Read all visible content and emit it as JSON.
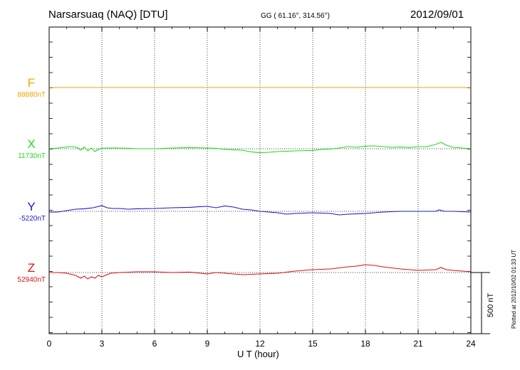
{
  "header": {
    "station": "Narsarsuaq (NAQ)  [DTU]",
    "coords": "GG ( 61.16°, 314.56°)",
    "date": "2012/09/01"
  },
  "footer": {
    "plotted": "Plotted at 2012/10/02 01:33 UT"
  },
  "chart_data": {
    "type": "line",
    "xlabel": "U T (hour)",
    "xlim": [
      0,
      24
    ],
    "xticks": [
      0,
      3,
      6,
      9,
      12,
      15,
      18,
      21,
      24
    ],
    "grid": "dotted vertical at every 3 hours",
    "scale_bar": {
      "label": "500 nT",
      "value_nT": 500
    },
    "series": [
      {
        "name": "F",
        "baseline_label": "88880nT",
        "baseline_nT": 88880,
        "color": "#f0a500",
        "x": [
          0,
          24
        ],
        "y": [
          0,
          0
        ]
      },
      {
        "name": "X",
        "baseline_label": "11730nT",
        "baseline_nT": 11730,
        "color": "#22dd22",
        "x": [
          0,
          0.5,
          1,
          1.3,
          1.6,
          1.8,
          2.0,
          2.2,
          2.4,
          2.6,
          2.8,
          3.0,
          3.3,
          3.8,
          4.5,
          5,
          6,
          7,
          8,
          9,
          9.5,
          10,
          10.5,
          11,
          11.5,
          12,
          12.5,
          13,
          13.5,
          14,
          15,
          15.5,
          16,
          16.5,
          17,
          17.5,
          18,
          18.5,
          19,
          19.5,
          20,
          20.5,
          21,
          21.5,
          22,
          22.3,
          22.6,
          23,
          23.5,
          24
        ],
        "y": [
          0,
          5,
          12,
          15,
          8,
          -10,
          12,
          -15,
          5,
          -20,
          -5,
          3,
          5,
          5,
          3,
          0,
          0,
          5,
          8,
          5,
          3,
          -5,
          -8,
          -10,
          -22,
          -28,
          -25,
          -20,
          -18,
          -15,
          -12,
          -5,
          -3,
          5,
          15,
          10,
          18,
          20,
          15,
          10,
          12,
          8,
          15,
          15,
          30,
          45,
          25,
          10,
          5,
          0
        ]
      },
      {
        "name": "Y",
        "baseline_label": "-5220nT",
        "baseline_nT": -5220,
        "color": "#1a1acc",
        "x": [
          0,
          0.5,
          1,
          1.5,
          2,
          2.5,
          3,
          3.3,
          3.6,
          4,
          4.5,
          5,
          6,
          7,
          8,
          8.5,
          9,
          9.5,
          10,
          10.5,
          11,
          11.5,
          12,
          12.5,
          13,
          13.5,
          14,
          15,
          16,
          16.5,
          17,
          18,
          18.5,
          19,
          20,
          21,
          22,
          22.2,
          22.5,
          23,
          24
        ],
        "y": [
          -5,
          -5,
          5,
          15,
          18,
          25,
          40,
          25,
          20,
          20,
          15,
          18,
          20,
          25,
          28,
          32,
          35,
          25,
          38,
          30,
          15,
          10,
          0,
          -5,
          -10,
          -20,
          -15,
          -10,
          -15,
          -25,
          -20,
          -15,
          -10,
          -5,
          0,
          0,
          0,
          10,
          0,
          0,
          -5
        ]
      },
      {
        "name": "Z",
        "baseline_label": "52940nT",
        "baseline_nT": 52940,
        "color": "#dd1111",
        "x": [
          0,
          0.5,
          1,
          1.5,
          1.8,
          2.0,
          2.2,
          2.4,
          2.6,
          2.8,
          3.0,
          3.5,
          4,
          5,
          6,
          7,
          8,
          9,
          9.5,
          10,
          11,
          12,
          13,
          14,
          14.5,
          15,
          16,
          17,
          17.5,
          18,
          18.5,
          19,
          20,
          21,
          22,
          22.3,
          22.6,
          23,
          24
        ],
        "y": [
          0,
          0,
          -5,
          -20,
          -40,
          -25,
          -45,
          -30,
          -40,
          -20,
          -30,
          -5,
          0,
          5,
          5,
          0,
          3,
          -10,
          0,
          -5,
          -15,
          -10,
          -5,
          10,
          15,
          20,
          25,
          40,
          45,
          55,
          50,
          40,
          25,
          15,
          20,
          35,
          20,
          15,
          5
        ]
      }
    ]
  }
}
